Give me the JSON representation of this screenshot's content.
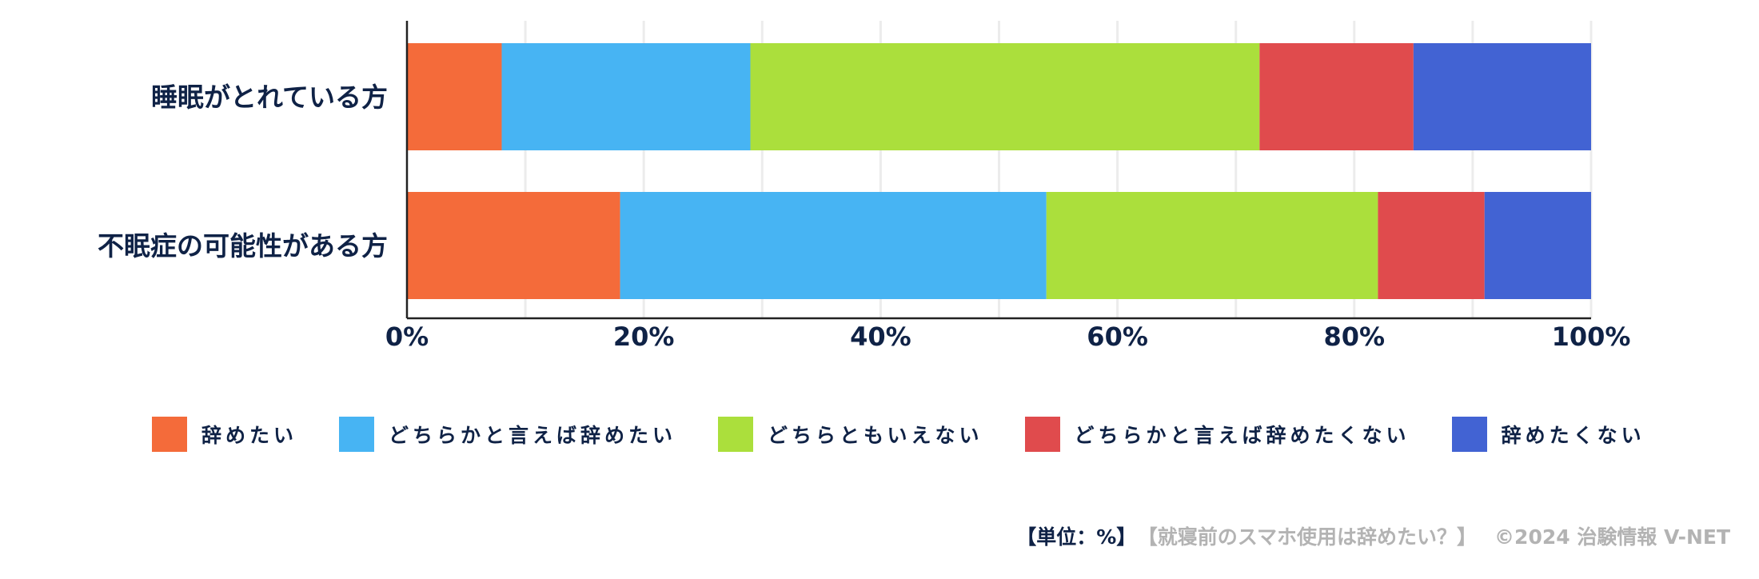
{
  "chart_data": {
    "type": "bar",
    "orientation": "horizontal",
    "stacked": true,
    "categories": [
      "睡眠がとれている方",
      "不眠症の可能性がある方"
    ],
    "series": [
      {
        "name": "辞めたい",
        "color": "#f46b3a",
        "values": [
          8,
          18
        ]
      },
      {
        "name": "どちらかと言えば辞めたい",
        "color": "#47b4f3",
        "values": [
          21,
          36
        ]
      },
      {
        "name": "どちらともいえない",
        "color": "#abdf3c",
        "values": [
          43,
          28
        ]
      },
      {
        "name": "どちらかと言えば辞めたくない",
        "color": "#e04b4d",
        "values": [
          13,
          9
        ]
      },
      {
        "name": "辞めたくない",
        "color": "#4263d3",
        "values": [
          15,
          9
        ]
      }
    ],
    "xlim": [
      0,
      100
    ],
    "x_ticks": [
      "0%",
      "20%",
      "40%",
      "60%",
      "80%",
      "100%"
    ],
    "grid": true,
    "legend_position": "bottom"
  },
  "footer": {
    "unit": "【単位：%】",
    "source": "【就寝前のスマホ使用は辞めたい？】",
    "copyright": "©2024 治験情報 V-NET"
  }
}
